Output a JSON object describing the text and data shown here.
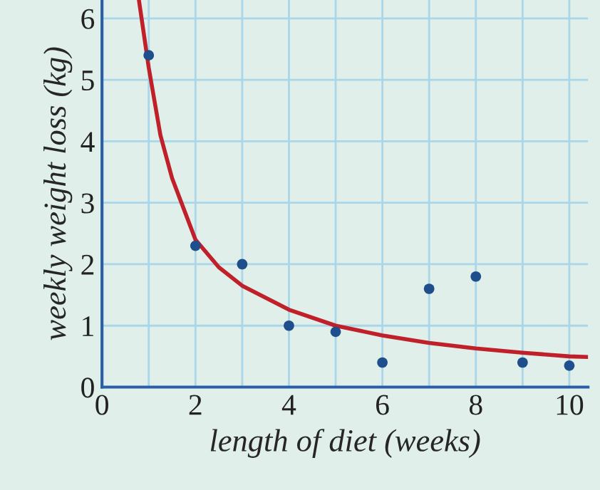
{
  "chart_data": {
    "type": "scatter",
    "xlabel": "length of diet (weeks)",
    "ylabel": "weekly weight loss (kg)",
    "series": [
      {
        "color": "#1f4e8c",
        "marker": "circle",
        "x": [
          1,
          2,
          3,
          4,
          5,
          6,
          7,
          8,
          9,
          10
        ],
        "values": [
          5.4,
          2.3,
          2.0,
          1.0,
          0.9,
          0.4,
          1.6,
          1.8,
          0.4,
          0.35
        ]
      },
      {
        "type": "line",
        "color": "#c0202a",
        "x": [
          0.79,
          1,
          1.25,
          1.5,
          2,
          2.5,
          3,
          4,
          5,
          6,
          7,
          8,
          9,
          10,
          10.4
        ],
        "values": [
          6.3,
          5.2,
          4.1,
          3.4,
          2.4,
          1.95,
          1.65,
          1.26,
          1.0,
          0.84,
          0.72,
          0.63,
          0.56,
          0.5,
          0.49
        ],
        "marker": "none",
        "line_style": "solid"
      }
    ],
    "xlim": [
      0,
      10.4
    ],
    "ylim": [
      0,
      6.3
    ],
    "xticks": [
      0,
      {
        "value": 1,
        "label": null
      },
      2,
      {
        "value": 3,
        "label": null
      },
      4,
      {
        "value": 5,
        "label": null
      },
      6,
      {
        "value": 7,
        "label": null
      },
      8,
      {
        "value": 9,
        "label": null
      },
      10
    ],
    "yticks": [
      0,
      1,
      2,
      3,
      4,
      5,
      6
    ],
    "grid": true,
    "legend": false
  }
}
